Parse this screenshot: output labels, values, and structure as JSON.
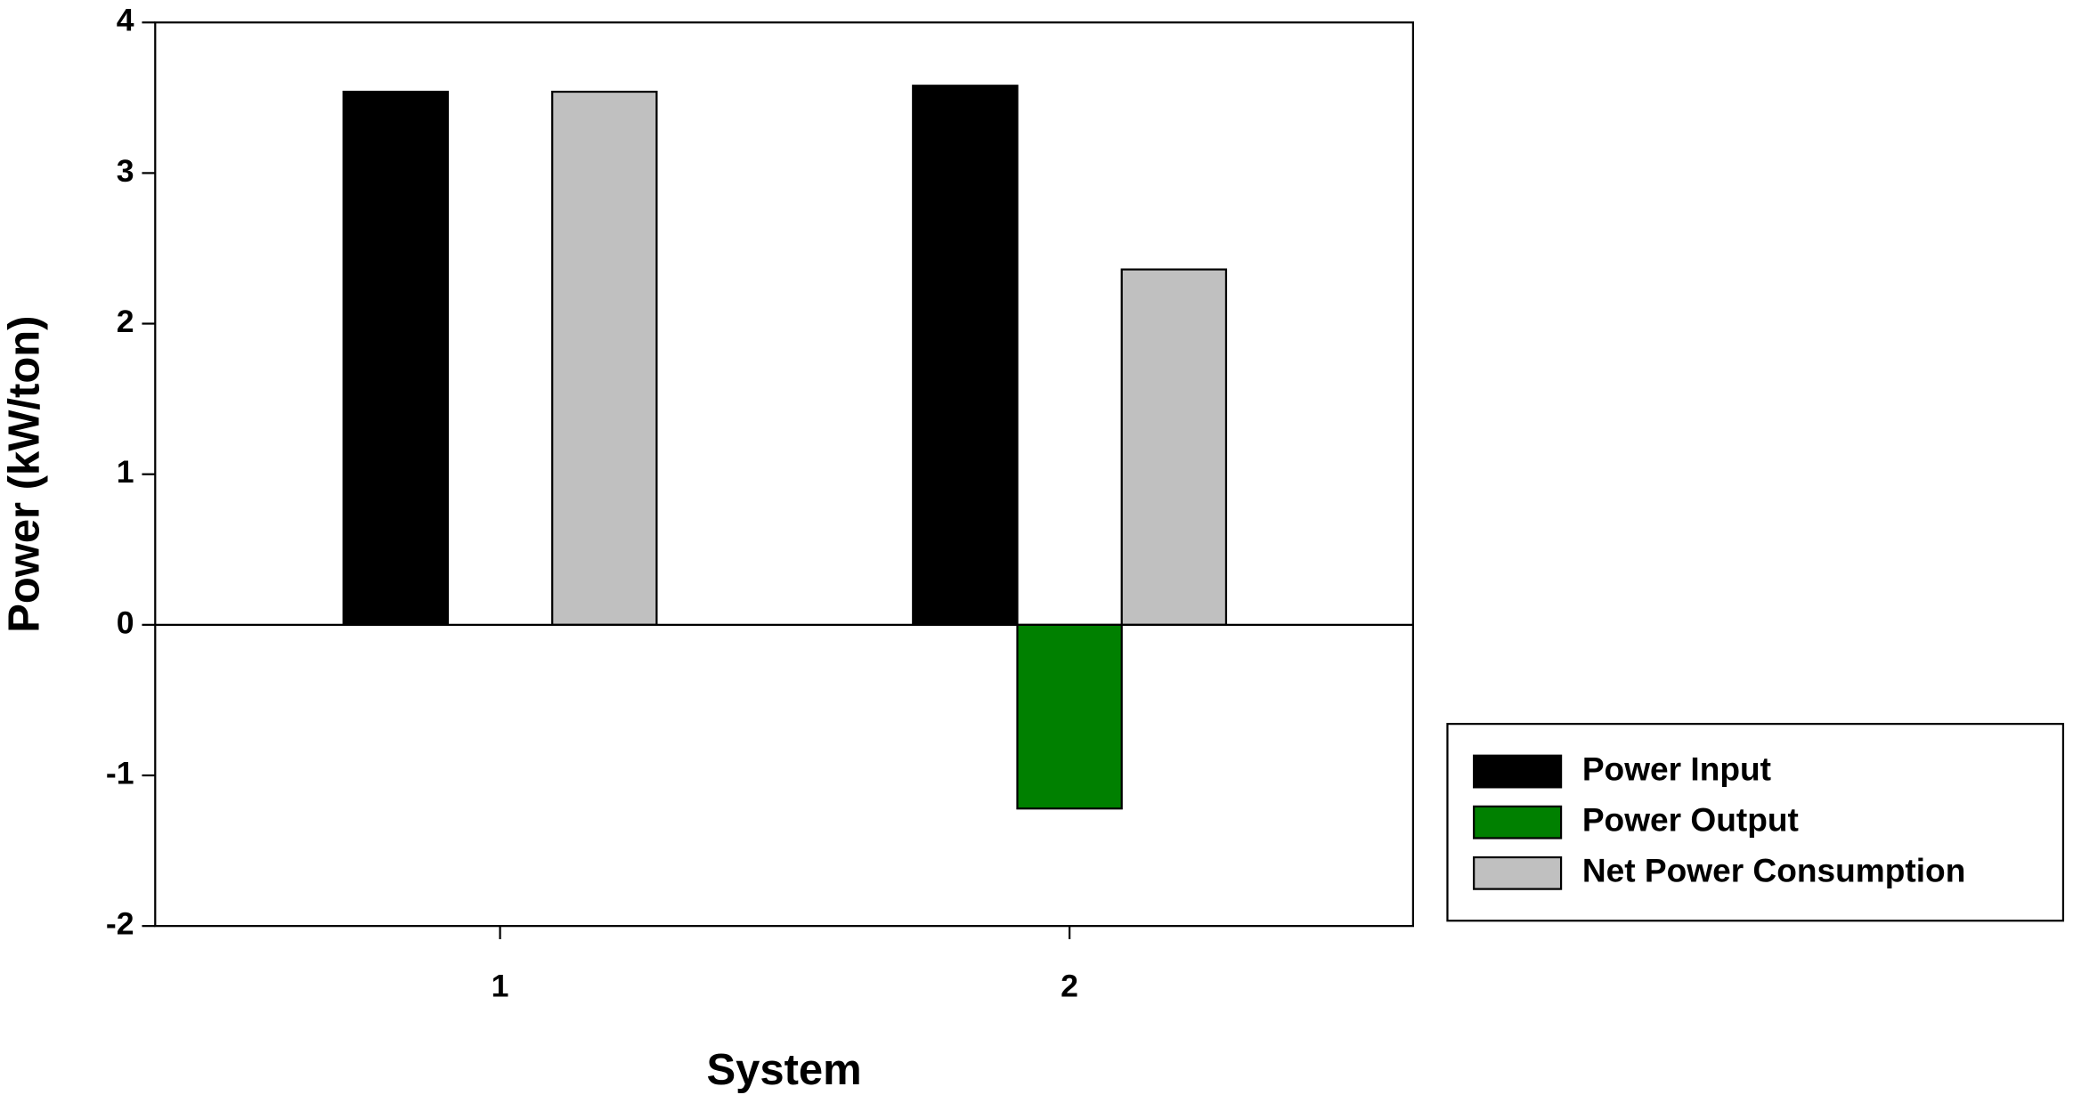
{
  "chart_data": {
    "type": "bar",
    "x_label": "System",
    "y_label": "Power (kW/ton)",
    "categories": [
      "1",
      "2"
    ],
    "series": [
      {
        "name": "Power Input",
        "color": "#000000",
        "values": [
          3.54,
          3.58
        ]
      },
      {
        "name": "Power Output",
        "color": "#008000",
        "values": [
          null,
          -1.22
        ]
      },
      {
        "name": "Net Power Consumption",
        "color": "#c0c0c0",
        "values": [
          3.54,
          2.36
        ]
      }
    ],
    "ylim": [
      -2,
      4
    ],
    "yticks": [
      -2,
      -1,
      0,
      1,
      2,
      3,
      4
    ]
  }
}
